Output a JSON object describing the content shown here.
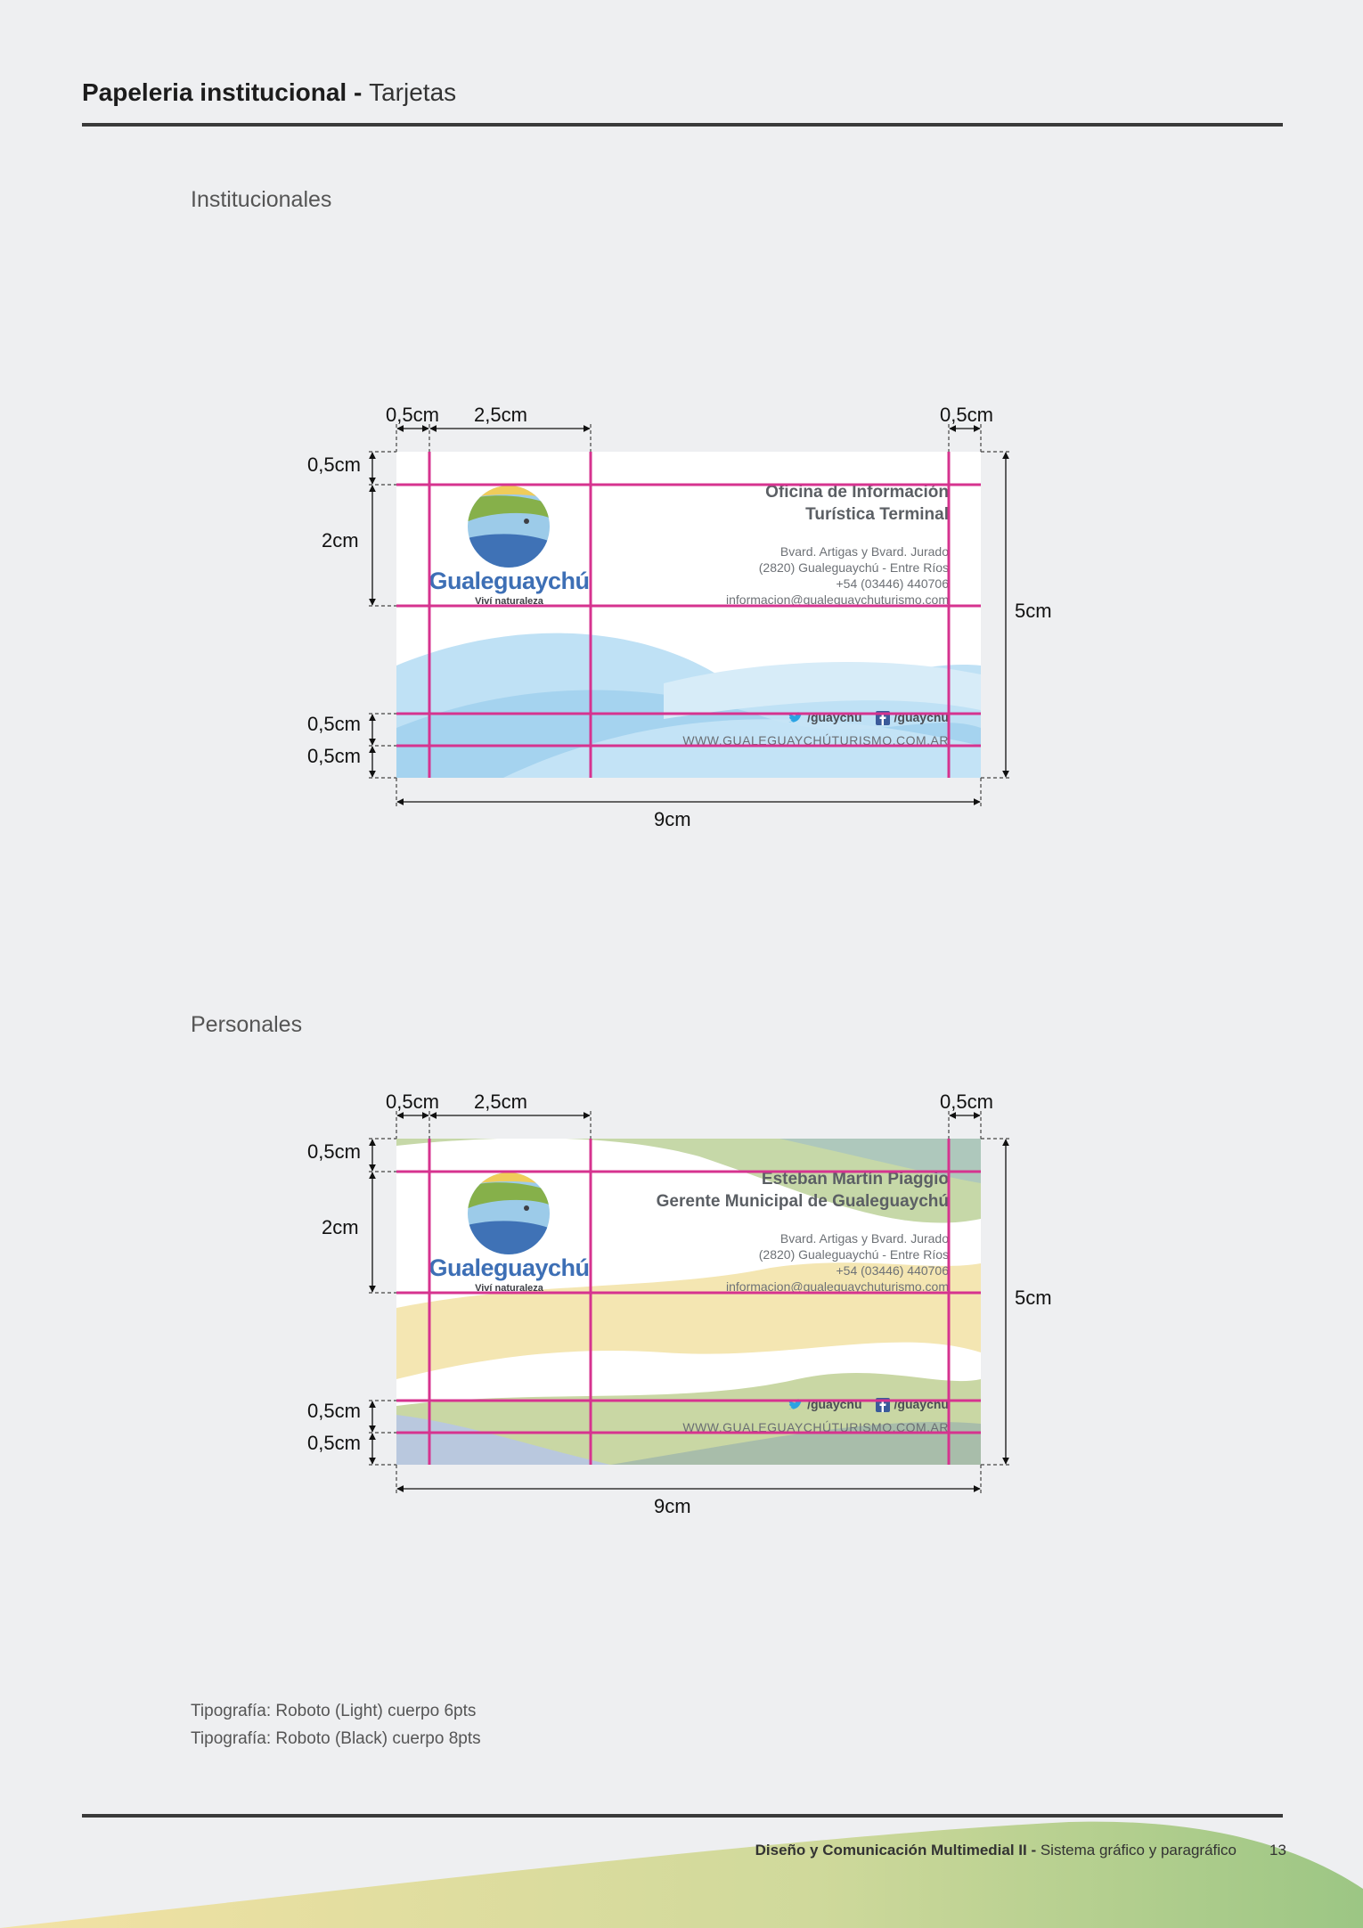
{
  "header": {
    "title_bold": "Papeleria institucional",
    "title_sep": " - ",
    "title_light": "Tarjetas"
  },
  "sections": {
    "institucionales": "Institucionales",
    "personales": "Personales"
  },
  "dimensions": {
    "margin": "0,5cm",
    "logo_width": "2,5cm",
    "logo_height": "2cm",
    "card_width": "9cm",
    "card_height": "5cm"
  },
  "card_institucional": {
    "title_line1": "Oficina de Información",
    "title_line2": "Turística Terminal",
    "address_line1": "Bvard. Artigas y Bvard. Jurado",
    "address_line2": "(2820) Gualeguaychú - Entre Ríos",
    "address_line3": "+54 (03446) 440706",
    "address_line4": "informacion@gualeguaychuturismo.com",
    "twitter": "/guaychu",
    "facebook": "/guaychu",
    "website": "WWW.GUALEGUAYCHÚTURISMO.COM.AR",
    "logo_word": "Gualeguaychú",
    "logo_tag": "Viví naturaleza"
  },
  "card_personal": {
    "title_line1": "Esteban Martín Piaggio",
    "title_line2": "Gerente Municipal de Gualeguaychú",
    "address_line1": "Bvard. Artigas y Bvard. Jurado",
    "address_line2": "(2820) Gualeguaychú - Entre Ríos",
    "address_line3": "+54 (03446) 440706",
    "address_line4": "informacion@gualeguaychuturismo.com",
    "twitter": "/guaychu",
    "facebook": "/guaychu",
    "website": "WWW.GUALEGUAYCHÚTURISMO.COM.AR",
    "logo_word": "Gualeguaychú",
    "logo_tag": "Viví naturaleza"
  },
  "footnotes": {
    "line1": "Tipografía: Roboto (Light) cuerpo 6pts",
    "line2": "Tipografía: Roboto (Black) cuerpo 8pts"
  },
  "footer": {
    "bold": "Diseño y Comunicación Multimedial II - ",
    "light": "Sistema gráfico y paragráfico",
    "page": "13"
  },
  "colors": {
    "guide": "#d6338f",
    "logo_blue": "#3d6fb5",
    "wave_blue": "#9fd0ee",
    "wave_yellow": "#f3e3a6",
    "wave_green": "#b9cf8e"
  }
}
